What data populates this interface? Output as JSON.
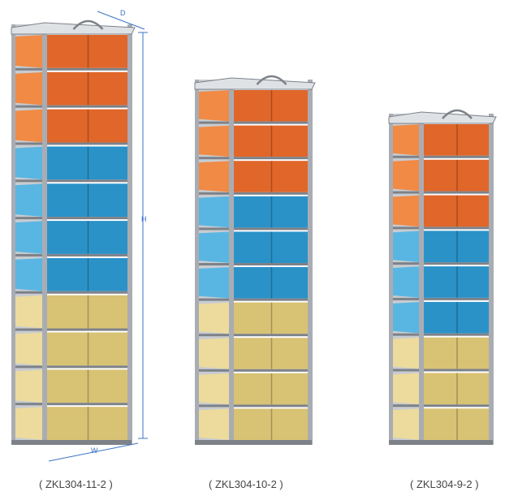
{
  "racks": [
    {
      "model_label": "( ZKL304-11-2 )",
      "boxes": [
        "orange",
        "orange",
        "orange",
        "blue",
        "blue",
        "blue",
        "blue",
        "yellow",
        "yellow",
        "yellow",
        "yellow"
      ]
    },
    {
      "model_label": "( ZKL304-10-2 )",
      "boxes": [
        "orange",
        "orange",
        "orange",
        "blue",
        "blue",
        "blue",
        "yellow",
        "yellow",
        "yellow",
        "yellow"
      ]
    },
    {
      "model_label": "( ZKL304-9-2 )",
      "boxes": [
        "orange",
        "orange",
        "orange",
        "blue",
        "blue",
        "blue",
        "yellow",
        "yellow",
        "yellow"
      ]
    }
  ],
  "dimensions": {
    "depth_label": "D",
    "height_label": "H",
    "width_label": "W"
  },
  "colors": {
    "orange": "#e0662a",
    "orange_side": "#f08a45",
    "blue": "#2b92c8",
    "blue_side": "#59b6e2",
    "yellow": "#d8c274",
    "yellow_side": "#ecdb9c",
    "steel": "#a9adb3",
    "steel_dark": "#7d8289",
    "dimension_line": "#3b73c4"
  }
}
